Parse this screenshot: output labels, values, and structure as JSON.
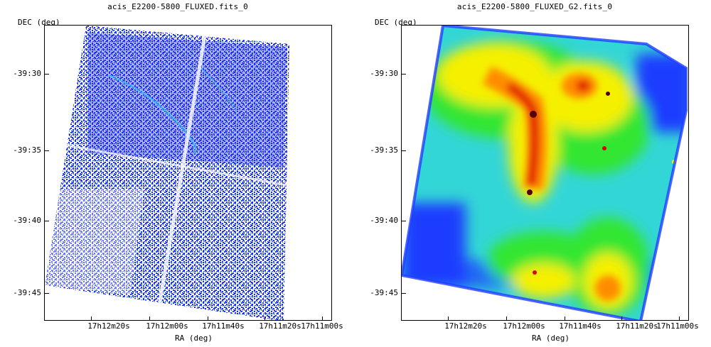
{
  "left": {
    "title": "acis_E2200-5800_FLUXED.fits_0",
    "ylabel": "DEC (deg)",
    "xlabel": "RA (deg)",
    "yticks": [
      "-39:30",
      "-39:35",
      "-39:40",
      "-39:45"
    ],
    "xticks": [
      "17h12m20s",
      "17h12m00s",
      "17h11m40s",
      "17h11m20s",
      "17h11m00s"
    ]
  },
  "right": {
    "title": "acis_E2200-5800_FLUXED_G2.fits_0",
    "ylabel": "DEC (deg)",
    "xlabel": "RA (deg)",
    "yticks": [
      "-39:30",
      "-39:35",
      "-39:40",
      "-39:45"
    ],
    "xticks": [
      "17h12m20s",
      "17h12m00s",
      "17h11m40s",
      "17h11m20s",
      "17h11m00s"
    ]
  },
  "colors": {
    "sparse_blue": "#1a2bff",
    "sparse_cyan": "#33c6e6",
    "smooth_blue": "#1f3dff",
    "smooth_cyan": "#33d6d6",
    "smooth_green": "#33e633",
    "smooth_yellow": "#f5f000",
    "smooth_orange": "#ff8c00",
    "smooth_red": "#e00000",
    "smooth_dark": "#550000"
  }
}
